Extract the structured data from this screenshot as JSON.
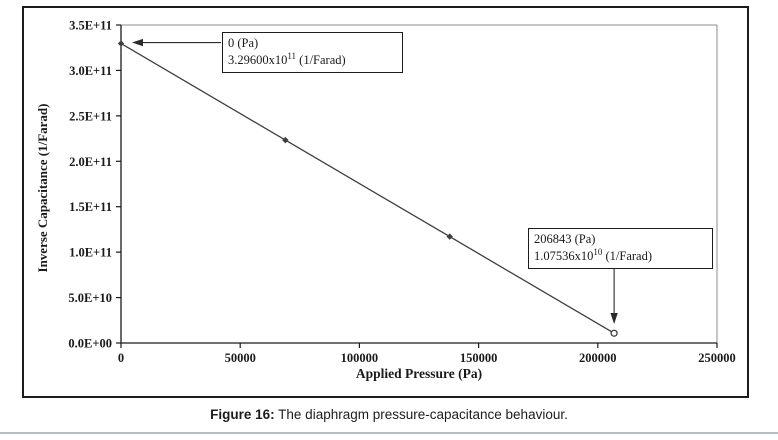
{
  "figure": {
    "caption_label": "Figure 16:",
    "caption_text": "The diaphragm pressure-capacitance behaviour."
  },
  "chart_data": {
    "type": "line",
    "xlabel": "Applied Pressure (Pa)",
    "ylabel": "Inverse Capacitance (1/Farad)",
    "xlim": [
      0,
      250000
    ],
    "ylim": [
      0,
      350000000000.0
    ],
    "grid": false,
    "legend": "none",
    "x_ticks": {
      "values": [
        0,
        50000,
        100000,
        150000,
        200000,
        250000
      ],
      "labels": [
        "0",
        "50000",
        "100000",
        "150000",
        "200000",
        "250000"
      ]
    },
    "y_ticks": {
      "values": [
        0,
        50000000000.0,
        100000000000.0,
        150000000000.0,
        200000000000.0,
        250000000000.0,
        300000000000.0,
        350000000000.0
      ],
      "labels": [
        "0.0E+00",
        "5.0E+10",
        "1.0E+11",
        "1.5E+11",
        "2.0E+11",
        "2.5E+11",
        "3.0E+11",
        "3.5E+11"
      ]
    },
    "series": [
      {
        "name": "inverse-capacitance-vs-pressure",
        "color": "#3f3f3f",
        "points": [
          {
            "x": 0,
            "y": 329600000000.0,
            "marker": "diamond"
          },
          {
            "x": 68948,
            "y": 223300000000.0,
            "marker": "diamond"
          },
          {
            "x": 137895,
            "y": 117100000000.0,
            "marker": "diamond"
          },
          {
            "x": 206843,
            "y": 10753600000.0,
            "marker": "open-circle"
          }
        ]
      }
    ],
    "annotations": [
      {
        "line1": "0 (Pa)",
        "line2_base": "3.29600x10",
        "line2_sup": "11",
        "line2_rest": " (1/Farad)",
        "target_x": 0,
        "target_y": 329600000000.0
      },
      {
        "line1": "206843  (Pa)",
        "line2_base": "1.07536x10",
        "line2_sup": "10",
        "line2_rest": " (1/Farad)",
        "target_x": 206843,
        "target_y": 10753600000.0
      }
    ],
    "colors": {
      "axis": "#1a1a1a",
      "plot_border": "#8c8c8c",
      "arrow": "#2b2b2b"
    }
  }
}
